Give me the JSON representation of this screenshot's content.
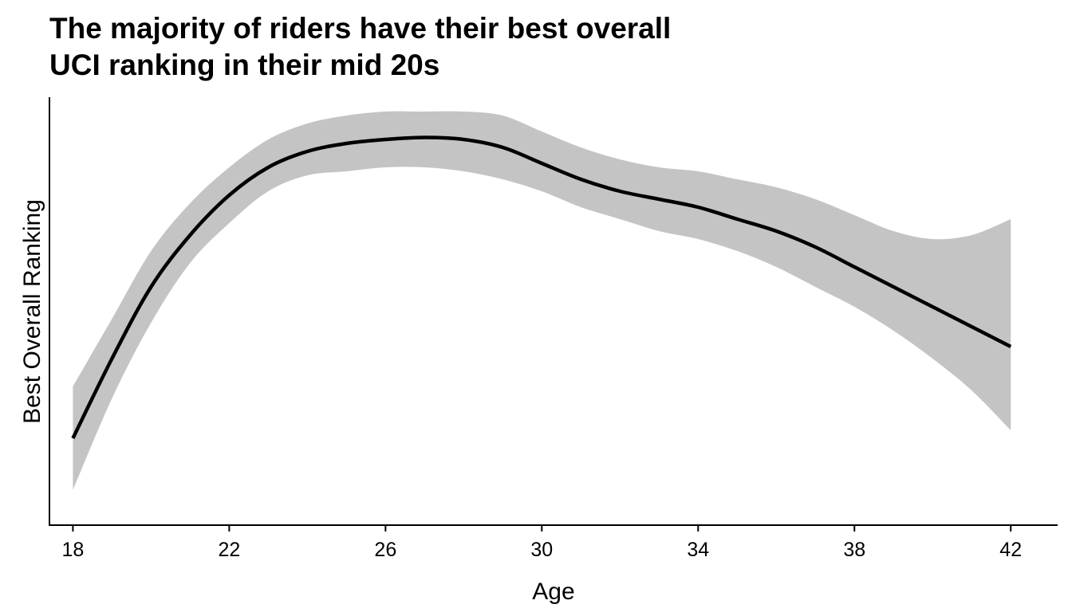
{
  "chart_data": {
    "type": "line",
    "title_lines": [
      "The majority of riders have their best overall",
      "UCI ranking in their mid 20s"
    ],
    "xlabel": "Age",
    "ylabel": "Best Overall Ranking",
    "xlim": [
      17.4,
      43.2
    ],
    "ylim": [
      0,
      1
    ],
    "x_ticks": [
      18,
      22,
      26,
      30,
      34,
      38,
      42
    ],
    "x_tick_labels": [
      "18",
      "22",
      "26",
      "30",
      "34",
      "38",
      "42"
    ],
    "y_ticks_shown": false,
    "grid": false,
    "colors": {
      "line": "#000000",
      "band": "#c4c4c4",
      "axis": "#000000"
    },
    "series": [
      {
        "type": "smooth-fit",
        "x": [
          18,
          19,
          20,
          21,
          22,
          23,
          24,
          25,
          26,
          27,
          28,
          29,
          30,
          31,
          32,
          33,
          34,
          35,
          36,
          37,
          38,
          39,
          40,
          41,
          42
        ],
        "y": [
          0.18,
          0.38,
          0.56,
          0.69,
          0.79,
          0.86,
          0.9,
          0.92,
          0.93,
          0.935,
          0.93,
          0.91,
          0.87,
          0.83,
          0.8,
          0.78,
          0.76,
          0.73,
          0.7,
          0.66,
          0.61,
          0.56,
          0.51,
          0.46,
          0.41
        ],
        "ci_low": [
          0.05,
          0.28,
          0.47,
          0.62,
          0.72,
          0.8,
          0.84,
          0.85,
          0.86,
          0.86,
          0.85,
          0.83,
          0.8,
          0.76,
          0.73,
          0.7,
          0.68,
          0.65,
          0.61,
          0.56,
          0.51,
          0.45,
          0.38,
          0.3,
          0.2
        ],
        "ci_high": [
          0.31,
          0.48,
          0.65,
          0.77,
          0.86,
          0.93,
          0.97,
          0.99,
          1.0,
          1.0,
          1.0,
          0.99,
          0.95,
          0.91,
          0.88,
          0.86,
          0.85,
          0.83,
          0.81,
          0.78,
          0.74,
          0.7,
          0.68,
          0.69,
          0.73
        ]
      }
    ]
  }
}
